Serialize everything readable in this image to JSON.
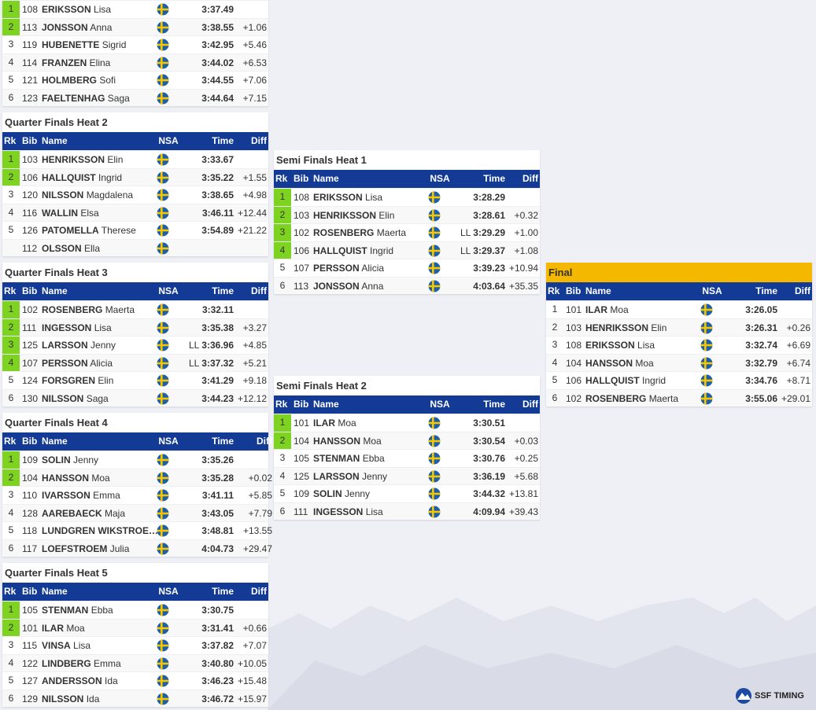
{
  "columns": [
    "Rk",
    "Bib",
    "Name",
    "NSA",
    "Time",
    "Diff"
  ],
  "heats": [
    {
      "rows": [
        {
          "rk": 1,
          "bib": 108,
          "last": "ERIKSSON",
          "first": "Lisa",
          "time": "3:37.49",
          "q": true
        },
        {
          "rk": 2,
          "bib": 113,
          "last": "JONSSON",
          "first": "Anna",
          "time": "3:38.55",
          "diff": "+1.06",
          "q": true
        },
        {
          "rk": 3,
          "bib": 119,
          "last": "HUBENETTE",
          "first": "Sigrid",
          "time": "3:42.95",
          "diff": "+5.46"
        },
        {
          "rk": 4,
          "bib": 114,
          "last": "FRANZEN",
          "first": "Elina",
          "time": "3:44.02",
          "diff": "+6.53"
        },
        {
          "rk": 5,
          "bib": 121,
          "last": "HOLMBERG",
          "first": "Sofi",
          "time": "3:44.55",
          "diff": "+7.06"
        },
        {
          "rk": 6,
          "bib": 123,
          "last": "FAELTENHAG",
          "first": "Saga",
          "time": "3:44.64",
          "diff": "+7.15"
        }
      ]
    },
    {
      "title": "Quarter Finals Heat 2",
      "rows": [
        {
          "rk": 1,
          "bib": 103,
          "last": "HENRIKSSON",
          "first": "Elin",
          "time": "3:33.67",
          "q": true
        },
        {
          "rk": 2,
          "bib": 106,
          "last": "HALLQUIST",
          "first": "Ingrid",
          "time": "3:35.22",
          "diff": "+1.55",
          "q": true
        },
        {
          "rk": 3,
          "bib": 120,
          "last": "NILSSON",
          "first": "Magdalena",
          "time": "3:38.65",
          "diff": "+4.98"
        },
        {
          "rk": 4,
          "bib": 116,
          "last": "WALLIN",
          "first": "Elsa",
          "time": "3:46.11",
          "diff": "+12.44"
        },
        {
          "rk": 5,
          "bib": 126,
          "last": "PATOMELLA",
          "first": "Therese",
          "time": "3:54.89",
          "diff": "+21.22"
        },
        {
          "bib": 112,
          "last": "OLSSON",
          "first": "Ella"
        }
      ]
    },
    {
      "title": "Quarter Finals Heat 3",
      "rows": [
        {
          "rk": 1,
          "bib": 102,
          "last": "ROSENBERG",
          "first": "Maerta",
          "time": "3:32.11",
          "q": true
        },
        {
          "rk": 2,
          "bib": 111,
          "last": "INGESSON",
          "first": "Lisa",
          "time": "3:35.38",
          "diff": "+3.27",
          "q": true
        },
        {
          "rk": 3,
          "bib": 125,
          "last": "LARSSON",
          "first": "Jenny",
          "note": "LL",
          "time": "3:36.96",
          "diff": "+4.85",
          "q": true
        },
        {
          "rk": 4,
          "bib": 107,
          "last": "PERSSON",
          "first": "Alicia",
          "note": "LL",
          "time": "3:37.32",
          "diff": "+5.21",
          "q": true
        },
        {
          "rk": 5,
          "bib": 124,
          "last": "FORSGREN",
          "first": "Elin",
          "time": "3:41.29",
          "diff": "+9.18"
        },
        {
          "rk": 6,
          "bib": 130,
          "last": "NILSSON",
          "first": "Saga",
          "time": "3:44.23",
          "diff": "+12.12"
        }
      ]
    },
    {
      "title": "Quarter Finals Heat 4",
      "rows": [
        {
          "rk": 1,
          "bib": 109,
          "last": "SOLIN",
          "first": "Jenny",
          "time": "3:35.26",
          "q": true
        },
        {
          "rk": 2,
          "bib": 104,
          "last": "HANSSON",
          "first": "Moa",
          "time": "3:35.28",
          "diff": "+0.02",
          "q": true
        },
        {
          "rk": 3,
          "bib": 110,
          "last": "IVARSSON",
          "first": "Emma",
          "time": "3:41.11",
          "diff": "+5.85"
        },
        {
          "rk": 4,
          "bib": 128,
          "last": "AAREBAECK",
          "first": "Maja",
          "time": "3:43.05",
          "diff": "+7.79"
        },
        {
          "rk": 5,
          "bib": 118,
          "last": "LUNDGREN WIKSTROE…",
          "time": "3:48.81",
          "diff": "+13.55"
        },
        {
          "rk": 6,
          "bib": 117,
          "last": "LOEFSTROEM",
          "first": "Julia",
          "time": "4:04.73",
          "diff": "+29.47"
        }
      ]
    },
    {
      "title": "Quarter Finals Heat 5",
      "rows": [
        {
          "rk": 1,
          "bib": 105,
          "last": "STENMAN",
          "first": "Ebba",
          "time": "3:30.75",
          "q": true
        },
        {
          "rk": 2,
          "bib": 101,
          "last": "ILAR",
          "first": "Moa",
          "time": "3:31.41",
          "diff": "+0.66",
          "q": true
        },
        {
          "rk": 3,
          "bib": 115,
          "last": "VINSA",
          "first": "Lisa",
          "time": "3:37.82",
          "diff": "+7.07"
        },
        {
          "rk": 4,
          "bib": 122,
          "last": "LINDBERG",
          "first": "Emma",
          "time": "3:40.80",
          "diff": "+10.05"
        },
        {
          "rk": 5,
          "bib": 127,
          "last": "ANDERSSON",
          "first": "Ida",
          "time": "3:46.23",
          "diff": "+15.48"
        },
        {
          "rk": 6,
          "bib": 129,
          "last": "NILSSON",
          "first": "Ida",
          "time": "3:46.72",
          "diff": "+15.97"
        }
      ]
    },
    {
      "title": "Semi Finals Heat 1",
      "rows": [
        {
          "rk": 1,
          "bib": 108,
          "last": "ERIKSSON",
          "first": "Lisa",
          "time": "3:28.29",
          "q": true
        },
        {
          "rk": 2,
          "bib": 103,
          "last": "HENRIKSSON",
          "first": "Elin",
          "time": "3:28.61",
          "diff": "+0.32",
          "q": true
        },
        {
          "rk": 3,
          "bib": 102,
          "last": "ROSENBERG",
          "first": "Maerta",
          "note": "LL",
          "time": "3:29.29",
          "diff": "+1.00",
          "q": true
        },
        {
          "rk": 4,
          "bib": 106,
          "last": "HALLQUIST",
          "first": "Ingrid",
          "note": "LL",
          "time": "3:29.37",
          "diff": "+1.08",
          "q": true
        },
        {
          "rk": 5,
          "bib": 107,
          "last": "PERSSON",
          "first": "Alicia",
          "time": "3:39.23",
          "diff": "+10.94"
        },
        {
          "rk": 6,
          "bib": 113,
          "last": "JONSSON",
          "first": "Anna",
          "time": "4:03.64",
          "diff": "+35.35"
        }
      ]
    },
    {
      "title": "Semi Finals Heat 2",
      "rows": [
        {
          "rk": 1,
          "bib": 101,
          "last": "ILAR",
          "first": "Moa",
          "time": "3:30.51",
          "q": true
        },
        {
          "rk": 2,
          "bib": 104,
          "last": "HANSSON",
          "first": "Moa",
          "time": "3:30.54",
          "diff": "+0.03",
          "q": true
        },
        {
          "rk": 3,
          "bib": 105,
          "last": "STENMAN",
          "first": "Ebba",
          "time": "3:30.76",
          "diff": "+0.25"
        },
        {
          "rk": 4,
          "bib": 125,
          "last": "LARSSON",
          "first": "Jenny",
          "time": "3:36.19",
          "diff": "+5.68"
        },
        {
          "rk": 5,
          "bib": 109,
          "last": "SOLIN",
          "first": "Jenny",
          "time": "3:44.32",
          "diff": "+13.81"
        },
        {
          "rk": 6,
          "bib": 111,
          "last": "INGESSON",
          "first": "Lisa",
          "time": "4:09.94",
          "diff": "+39.43"
        }
      ]
    },
    {
      "title": "Final",
      "title_color": "#f5b800",
      "rows": [
        {
          "rk": 1,
          "bib": 101,
          "last": "ILAR",
          "first": "Moa",
          "time": "3:26.05"
        },
        {
          "rk": 2,
          "bib": 103,
          "last": "HENRIKSSON",
          "first": "Elin",
          "time": "3:26.31",
          "diff": "+0.26"
        },
        {
          "rk": 3,
          "bib": 108,
          "last": "ERIKSSON",
          "first": "Lisa",
          "time": "3:32.74",
          "diff": "+6.69"
        },
        {
          "rk": 4,
          "bib": 104,
          "last": "HANSSON",
          "first": "Moa",
          "time": "3:32.79",
          "diff": "+6.74"
        },
        {
          "rk": 5,
          "bib": 106,
          "last": "HALLQUIST",
          "first": "Ingrid",
          "time": "3:34.76",
          "diff": "+8.71"
        },
        {
          "rk": 6,
          "bib": 102,
          "last": "ROSENBERG",
          "first": "Maerta",
          "time": "3:55.06",
          "diff": "+29.01"
        }
      ]
    }
  ],
  "footer": {
    "logo": "SSF TIMING"
  }
}
